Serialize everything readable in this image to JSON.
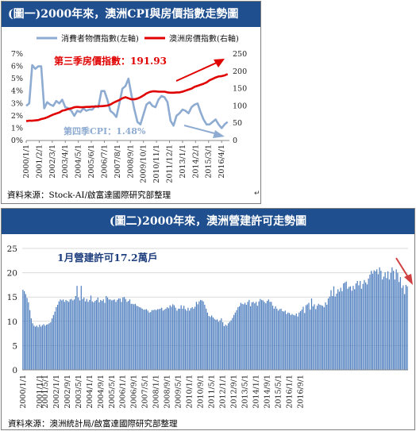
{
  "chart_data": [
    {
      "type": "line",
      "title": "(圖一)2000年來，澳洲CPI與房價指數走勢圖",
      "source": "資料來源：Stock-AI/啟富達國際研究部整理",
      "x_tick_labels": [
        "2000/1/1",
        "2001/2/1",
        "2002/3/1",
        "2003/4/1",
        "2004/5/1",
        "2005/6/1",
        "2006/7/1",
        "2007/8/1",
        "2008/9/1",
        "2009/10/1",
        "2010/11/1",
        "2011/12/1",
        "2013/1/1",
        "2014/2/1",
        "2015/3/1",
        "2016/4/1"
      ],
      "y_left": {
        "ticks": [
          "0%",
          "1%",
          "2%",
          "3%",
          "4%",
          "5%",
          "6%",
          "7%"
        ],
        "min": 0,
        "max": 7
      },
      "y_right": {
        "ticks": [
          "0",
          "50",
          "100",
          "150",
          "200",
          "250"
        ],
        "min": 0,
        "max": 250
      },
      "series": [
        {
          "name": "消費者物價指數(左軸)",
          "axis": "left",
          "color": "#8eabd1",
          "x": [
            2000.0,
            2000.25,
            2000.5,
            2000.75,
            2001.0,
            2001.25,
            2001.5,
            2001.75,
            2002.0,
            2002.25,
            2002.5,
            2002.75,
            2003.0,
            2003.25,
            2003.5,
            2003.75,
            2004.0,
            2004.25,
            2004.5,
            2004.75,
            2005.0,
            2005.25,
            2005.5,
            2005.75,
            2006.0,
            2006.25,
            2006.5,
            2006.75,
            2007.0,
            2007.25,
            2007.5,
            2007.75,
            2008.0,
            2008.25,
            2008.5,
            2008.75,
            2009.0,
            2009.25,
            2009.5,
            2009.75,
            2010.0,
            2010.25,
            2010.5,
            2010.75,
            2011.0,
            2011.25,
            2011.5,
            2011.75,
            2012.0,
            2012.25,
            2012.5,
            2012.75,
            2013.0,
            2013.25,
            2013.5,
            2013.75,
            2014.0,
            2014.25,
            2014.5,
            2014.75,
            2015.0,
            2015.25,
            2015.5,
            2015.75,
            2016.0,
            2016.25,
            2016.5,
            2016.75
          ],
          "values": [
            2.8,
            3.0,
            6.1,
            5.8,
            6.0,
            6.0,
            2.6,
            3.1,
            2.9,
            2.8,
            3.2,
            3.0,
            3.3,
            2.7,
            2.6,
            2.4,
            2.0,
            2.4,
            2.3,
            2.6,
            2.4,
            2.5,
            2.5,
            2.8,
            2.7,
            4.0,
            4.0,
            3.3,
            2.4,
            2.2,
            1.9,
            3.0,
            4.2,
            4.4,
            5.0,
            3.7,
            2.5,
            1.5,
            1.3,
            2.1,
            2.9,
            3.1,
            2.8,
            2.7,
            3.3,
            3.6,
            3.5,
            3.1,
            1.6,
            1.2,
            2.0,
            2.2,
            2.5,
            2.4,
            2.2,
            2.7,
            2.9,
            3.0,
            2.3,
            1.7,
            1.3,
            1.3,
            1.5,
            1.7,
            1.3,
            1.0,
            1.3,
            1.5
          ]
        },
        {
          "name": "澳洲房價指數(右軸)",
          "axis": "right",
          "color": "#e00000",
          "x": [
            2000.0,
            2000.25,
            2000.5,
            2000.75,
            2001.0,
            2001.25,
            2001.5,
            2001.75,
            2002.0,
            2002.25,
            2002.5,
            2002.75,
            2003.0,
            2003.25,
            2003.5,
            2003.75,
            2004.0,
            2004.25,
            2004.5,
            2004.75,
            2005.0,
            2005.25,
            2005.5,
            2005.75,
            2006.0,
            2006.25,
            2006.5,
            2006.75,
            2007.0,
            2007.25,
            2007.5,
            2007.75,
            2008.0,
            2008.25,
            2008.5,
            2008.75,
            2009.0,
            2009.25,
            2009.5,
            2009.75,
            2010.0,
            2010.25,
            2010.5,
            2010.75,
            2011.0,
            2011.25,
            2011.5,
            2011.75,
            2012.0,
            2012.25,
            2012.5,
            2012.75,
            2013.0,
            2013.25,
            2013.5,
            2013.75,
            2014.0,
            2014.25,
            2014.5,
            2014.75,
            2015.0,
            2015.25,
            2015.5,
            2015.75,
            2016.0,
            2016.25,
            2016.5,
            2016.75
          ],
          "values": [
            56,
            57,
            57,
            58,
            59,
            62,
            64,
            67,
            71,
            75,
            78,
            81,
            86,
            88,
            91,
            93,
            96,
            97,
            96,
            96,
            97,
            97,
            98,
            98,
            99,
            99,
            100,
            101,
            104,
            109,
            113,
            117,
            122,
            125,
            122,
            119,
            119,
            121,
            125,
            130,
            136,
            140,
            142,
            142,
            141,
            141,
            141,
            139,
            138,
            138,
            139,
            139,
            141,
            144,
            147,
            150,
            155,
            158,
            161,
            164,
            168,
            174,
            178,
            182,
            185,
            186,
            188,
            192
          ]
        }
      ],
      "annotations": [
        {
          "text": "第三季房價指數：191.93",
          "color": "#e00000"
        },
        {
          "text": "第四季CPI：1.48%",
          "color": "#8eabd1"
        }
      ]
    },
    {
      "type": "bar",
      "title": "(圖二)2000年來，澳洲營建許可走勢圖",
      "source": "資料來源：澳洲統計局/啟富達國際研究部整理",
      "color": "#4f7fbf",
      "x_tick_labels": [
        "2000/1/1",
        "2001/1/1",
        "2001/5/1",
        "2002/1/1",
        "2002/9/1",
        "2003/5/1",
        "2004/1/1",
        "2004/9/1",
        "2005/5/1",
        "2006/1/1",
        "2006/9/1",
        "2007/5/1",
        "2008/1/1",
        "2008/9/1",
        "2009/5/1",
        "2010/1/1",
        "2010/9/1",
        "2011/5/1",
        "2012/1/1",
        "2012/9/1",
        "2013/5/1",
        "2014/1/1",
        "2014/9/1",
        "2015/5/1",
        "2016/1/1",
        "2016/9/1"
      ],
      "y": {
        "ticks": [
          "0",
          "5",
          "10",
          "15",
          "20",
          "25"
        ],
        "min": 0,
        "max": 25
      },
      "annotations": [
        {
          "text": "1月營建許可17.2萬戶",
          "color": "#1f3f7f"
        }
      ],
      "values": [
        16.5,
        16.2,
        15.6,
        14.8,
        13.9,
        12.3,
        10.6,
        9.6,
        9.1,
        8.9,
        9.1,
        8.8,
        9.3,
        8.9,
        9.2,
        9.4,
        9.1,
        9.3,
        9.4,
        9.6,
        9.8,
        10.6,
        11.3,
        12.0,
        12.9,
        13.4,
        14.1,
        14.5,
        14.3,
        14.5,
        14.0,
        14.4,
        14.2,
        14.0,
        14.5,
        14.6,
        14.3,
        14.5,
        15.2,
        17.3,
        14.9,
        14.3,
        17.3,
        14.6,
        14.9,
        14.1,
        14.6,
        14.0,
        14.4,
        15.3,
        14.1,
        13.9,
        14.2,
        14.4,
        14.9,
        13.9,
        14.4,
        14.2,
        14.5,
        13.8,
        15.2,
        14.9,
        14.5,
        14.5,
        14.3,
        14.4,
        14.5,
        14.0,
        14.4,
        14.7,
        14.7,
        14.0,
        14.9,
        15.0,
        14.6,
        14.0,
        14.2,
        14.5,
        13.6,
        13.6,
        13.5,
        13.6,
        13.2,
        13.1,
        12.9,
        12.8,
        12.6,
        12.4,
        12.4,
        12.5,
        12.2,
        11.8,
        11.9,
        12.3,
        12.3,
        12.4,
        12.3,
        12.5,
        12.5,
        12.6,
        12.8,
        12.2,
        12.4,
        12.6,
        12.9,
        12.7,
        13.3,
        13.0,
        13.5,
        13.3,
        12.8,
        12.2,
        12.6,
        12.6,
        13.3,
        12.6,
        13.2,
        12.5,
        12.2,
        12.8,
        12.2,
        12.7,
        12.9,
        12.6,
        13.0,
        14.0,
        13.5,
        14.1,
        14.4,
        14.3,
        14.1,
        13.4,
        12.6,
        11.8,
        11.1,
        10.9,
        11.2,
        10.8,
        10.5,
        10.3,
        10.4,
        9.9,
        10.2,
        10.6,
        9.8,
        9.0,
        9.3,
        9.1,
        9.6,
        9.9,
        10.2,
        10.7,
        11.3,
        11.8,
        12.3,
        12.9,
        13.1,
        13.8,
        13.6,
        13.5,
        13.8,
        13.4,
        14.0,
        14.4,
        13.1,
        13.9,
        14.0,
        13.7,
        14.0,
        13.2,
        14.1,
        14.6,
        14.4,
        14.3,
        14.0,
        13.7,
        14.2,
        14.5,
        14.0,
        14.0,
        13.2,
        12.6,
        13.1,
        12.6,
        12.2,
        12.5,
        12.6,
        12.1,
        12.0,
        12.2,
        11.5,
        11.8,
        11.7,
        11.3,
        11.5,
        11.3,
        11.2,
        11.6,
        11.0,
        11.8,
        12.1,
        12.4,
        13.0,
        11.7,
        13.3,
        13.5,
        13.8,
        12.4,
        14.7,
        13.1,
        13.5,
        12.5,
        13.2,
        13.6,
        13.4,
        13.3,
        13.2,
        12.9,
        13.9,
        13.4,
        14.7,
        15.1,
        16.4,
        15.2,
        17.2,
        15.1,
        15.7,
        16.6,
        16.1,
        16.9,
        16.2,
        17.8,
        18.0,
        18.2,
        16.7,
        17.1,
        17.2,
        16.3,
        17.3,
        16.6,
        17.8,
        18.3,
        17.4,
        18.3,
        16.7,
        17.7,
        18.5,
        18.0,
        17.6,
        18.8,
        19.6,
        20.4,
        19.8,
        20.5,
        20.3,
        20.7,
        19.7,
        21.1,
        20.4,
        18.6,
        19.2,
        20.1,
        18.9,
        20.3,
        18.6,
        20.0,
        21.1,
        20.4,
        18.6,
        20.7,
        20.0,
        18.1,
        19.1,
        16.9,
        17.4,
        15.6,
        17.5,
        17.2
      ]
    }
  ]
}
